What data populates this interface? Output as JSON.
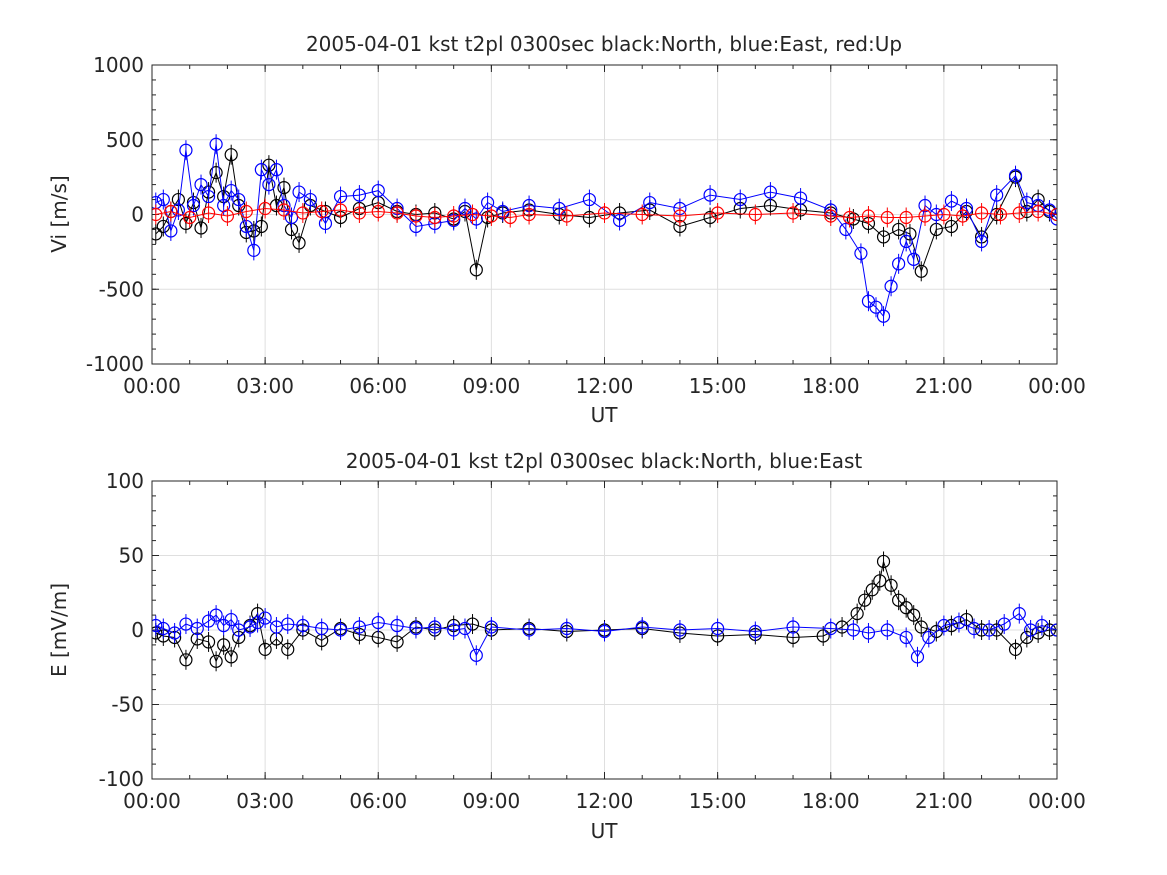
{
  "chart_data": [
    {
      "type": "line",
      "title": "2005-04-01 kst t2pl 0300sec black:North, blue:East, red:Up",
      "xlabel": "UT",
      "ylabel": "Vi [m/s]",
      "xlim": [
        0,
        24
      ],
      "ylim": [
        -1000,
        1000
      ],
      "grid": true,
      "xticks": [
        "00:00",
        "03:00",
        "06:00",
        "09:00",
        "12:00",
        "15:00",
        "18:00",
        "21:00",
        "00:00"
      ],
      "yticks": [
        "1000",
        "500",
        "0",
        "-500",
        "-1000"
      ],
      "marker": "circle",
      "series": [
        {
          "name": "North",
          "color": "#000000",
          "x": [
            0.1,
            0.3,
            0.5,
            0.7,
            0.9,
            1.1,
            1.3,
            1.5,
            1.7,
            1.9,
            2.1,
            2.3,
            2.5,
            2.7,
            2.9,
            3.1,
            3.3,
            3.5,
            3.7,
            3.9,
            4.2,
            4.6,
            5.0,
            5.5,
            6.0,
            6.5,
            7.0,
            7.5,
            8.0,
            8.3,
            8.6,
            8.9,
            9.3,
            10.0,
            10.8,
            11.6,
            12.4,
            13.2,
            14.0,
            14.8,
            15.6,
            16.4,
            17.2,
            18.0,
            18.6,
            19.0,
            19.4,
            19.8,
            20.1,
            20.4,
            20.8,
            21.2,
            21.6,
            22.0,
            22.4,
            22.9,
            23.2,
            23.5,
            23.8,
            24.0
          ],
          "y": [
            -130,
            -80,
            20,
            100,
            -60,
            80,
            -90,
            150,
            280,
            120,
            400,
            60,
            -120,
            -110,
            -80,
            330,
            60,
            180,
            -100,
            -190,
            60,
            20,
            -20,
            40,
            80,
            20,
            0,
            10,
            -30,
            20,
            -370,
            -20,
            10,
            30,
            0,
            -20,
            10,
            30,
            -80,
            -20,
            40,
            60,
            30,
            10,
            -30,
            -60,
            -150,
            -100,
            -130,
            -380,
            -100,
            -80,
            20,
            -150,
            0,
            250,
            20,
            100,
            20,
            0
          ]
        },
        {
          "name": "East",
          "color": "#0000ff",
          "x": [
            0.1,
            0.3,
            0.5,
            0.7,
            0.9,
            1.1,
            1.3,
            1.5,
            1.7,
            1.9,
            2.1,
            2.3,
            2.5,
            2.7,
            2.9,
            3.1,
            3.3,
            3.5,
            3.7,
            3.9,
            4.2,
            4.6,
            5.0,
            5.5,
            6.0,
            6.5,
            7.0,
            7.5,
            8.0,
            8.3,
            8.6,
            8.9,
            9.3,
            10.0,
            10.8,
            11.6,
            12.4,
            13.2,
            14.0,
            14.8,
            15.6,
            16.4,
            17.2,
            18.0,
            18.4,
            18.8,
            19.0,
            19.2,
            19.4,
            19.6,
            19.8,
            20.0,
            20.2,
            20.5,
            20.8,
            21.2,
            21.6,
            22.0,
            22.4,
            22.9,
            23.2,
            23.5,
            23.8,
            24.0
          ],
          "y": [
            80,
            100,
            -110,
            30,
            430,
            60,
            200,
            120,
            470,
            60,
            160,
            100,
            -80,
            -240,
            300,
            200,
            300,
            60,
            -20,
            150,
            100,
            -60,
            120,
            130,
            160,
            40,
            -80,
            -60,
            -40,
            40,
            -30,
            80,
            20,
            60,
            40,
            100,
            -40,
            80,
            40,
            130,
            100,
            150,
            110,
            30,
            -100,
            -260,
            -580,
            -620,
            -680,
            -480,
            -330,
            -180,
            -300,
            60,
            0,
            90,
            40,
            -180,
            130,
            260,
            80,
            60,
            30,
            -30
          ]
        },
        {
          "name": "Up",
          "color": "#ff0000",
          "x": [
            0.1,
            0.5,
            1.0,
            1.5,
            2.0,
            2.5,
            3.0,
            3.5,
            4.0,
            4.5,
            5.0,
            5.5,
            6.0,
            6.5,
            7.0,
            7.5,
            8.0,
            8.5,
            9.0,
            9.5,
            10.0,
            11.0,
            12.0,
            13.0,
            14.0,
            15.0,
            16.0,
            17.0,
            18.0,
            18.5,
            19.0,
            19.5,
            20.0,
            20.5,
            21.0,
            21.5,
            22.0,
            22.5,
            23.0,
            23.5,
            24.0
          ],
          "y": [
            0,
            20,
            -20,
            10,
            -10,
            20,
            40,
            30,
            10,
            20,
            30,
            10,
            20,
            10,
            -10,
            -20,
            -10,
            0,
            -10,
            -20,
            0,
            -10,
            10,
            0,
            -10,
            10,
            0,
            10,
            -10,
            -20,
            -10,
            -20,
            -20,
            -10,
            0,
            -10,
            10,
            0,
            10,
            20,
            0
          ]
        }
      ]
    },
    {
      "type": "line",
      "title": "2005-04-01 kst t2pl 0300sec black:North, blue:East",
      "xlabel": "UT",
      "ylabel": "E [mV/m]",
      "xlim": [
        0,
        24
      ],
      "ylim": [
        -100,
        100
      ],
      "grid": true,
      "xticks": [
        "00:00",
        "03:00",
        "06:00",
        "09:00",
        "12:00",
        "15:00",
        "18:00",
        "21:00",
        "00:00"
      ],
      "yticks": [
        "100",
        "50",
        "0",
        "-50",
        "-100"
      ],
      "marker": "circle",
      "series": [
        {
          "name": "North",
          "color": "#000000",
          "x": [
            0.1,
            0.3,
            0.6,
            0.9,
            1.2,
            1.5,
            1.7,
            1.9,
            2.1,
            2.3,
            2.6,
            2.8,
            3.0,
            3.3,
            3.6,
            4.0,
            4.5,
            5.0,
            5.5,
            6.0,
            6.5,
            7.0,
            7.5,
            8.0,
            8.5,
            9.0,
            10.0,
            11.0,
            12.0,
            13.0,
            14.0,
            15.0,
            16.0,
            17.0,
            17.8,
            18.3,
            18.7,
            18.9,
            19.1,
            19.3,
            19.4,
            19.6,
            19.8,
            20.0,
            20.2,
            20.4,
            20.8,
            21.2,
            21.6,
            22.0,
            22.4,
            22.9,
            23.2,
            23.5,
            23.8,
            24.0
          ],
          "y": [
            -2,
            -4,
            -5,
            -20,
            -6,
            -8,
            -21,
            -10,
            -18,
            -5,
            3,
            11,
            -13,
            -6,
            -13,
            0,
            -7,
            1,
            -3,
            -5,
            -8,
            2,
            0,
            3,
            4,
            0,
            1,
            -1,
            0,
            1,
            -2,
            -4,
            -3,
            -5,
            -4,
            2,
            11,
            20,
            27,
            33,
            46,
            30,
            20,
            15,
            10,
            2,
            -1,
            3,
            7,
            0,
            0,
            -13,
            -5,
            -2,
            0,
            0
          ]
        },
        {
          "name": "East",
          "color": "#0000ff",
          "x": [
            0.1,
            0.3,
            0.6,
            0.9,
            1.2,
            1.5,
            1.7,
            1.9,
            2.1,
            2.3,
            2.6,
            2.8,
            3.0,
            3.3,
            3.6,
            4.0,
            4.5,
            5.0,
            5.5,
            6.0,
            6.5,
            7.0,
            7.5,
            8.0,
            8.3,
            8.6,
            9.0,
            10.0,
            11.0,
            12.0,
            13.0,
            14.0,
            15.0,
            16.0,
            17.0,
            18.0,
            18.6,
            19.0,
            19.5,
            20.0,
            20.3,
            20.6,
            21.0,
            21.4,
            21.8,
            22.2,
            22.6,
            23.0,
            23.3,
            23.6,
            24.0
          ],
          "y": [
            3,
            1,
            -2,
            4,
            1,
            6,
            10,
            3,
            7,
            0,
            2,
            5,
            8,
            2,
            4,
            3,
            1,
            0,
            2,
            5,
            3,
            1,
            2,
            0,
            1,
            -17,
            2,
            0,
            1,
            -1,
            2,
            0,
            1,
            -1,
            2,
            1,
            0,
            -2,
            0,
            -5,
            -18,
            -5,
            3,
            5,
            1,
            0,
            4,
            11,
            0,
            3,
            0
          ]
        }
      ]
    }
  ]
}
